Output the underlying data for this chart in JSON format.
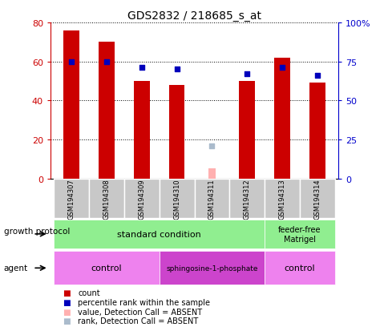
{
  "title": "GDS2832 / 218685_s_at",
  "samples": [
    "GSM194307",
    "GSM194308",
    "GSM194309",
    "GSM194310",
    "GSM194311",
    "GSM194312",
    "GSM194313",
    "GSM194314"
  ],
  "red_bars": [
    76,
    70,
    50,
    48,
    null,
    50,
    62,
    49
  ],
  "blue_squares_pct": [
    75,
    75,
    71,
    70,
    null,
    67,
    71,
    66
  ],
  "absent_value": [
    null,
    null,
    null,
    null,
    5,
    null,
    null,
    null
  ],
  "absent_rank_pct": [
    null,
    null,
    null,
    null,
    21,
    null,
    null,
    null
  ],
  "ylim_left": [
    0,
    80
  ],
  "ylim_right": [
    0,
    100
  ],
  "yticks_left": [
    0,
    20,
    40,
    60,
    80
  ],
  "yticks_right": [
    0,
    25,
    50,
    75,
    100
  ],
  "bar_color": "#CC0000",
  "blue_color": "#0000BB",
  "absent_val_color": "#FFB0B0",
  "absent_rank_color": "#AABBCC",
  "axis_left_color": "#CC0000",
  "axis_right_color": "#0000CC",
  "bg_color": "#FFFFFF",
  "protocol_green": "#90EE90",
  "agent_light_pink": "#EE82EE",
  "agent_dark_pink": "#CC44CC"
}
